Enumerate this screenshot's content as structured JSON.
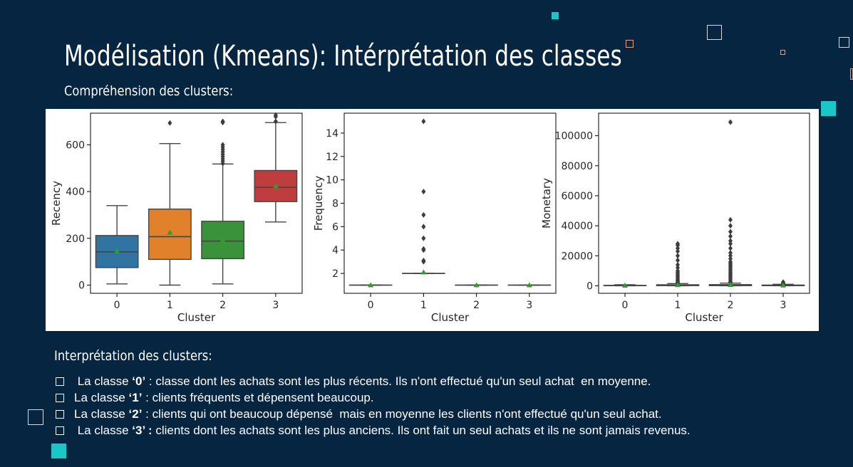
{
  "slide": {
    "title": "Modélisation (Kmeans):  Intérprétation des classes",
    "subtitle": "Compréhension des clusters:",
    "interpretation_heading": "Interprétation des clusters:",
    "bullets": [
      {
        "prefix": " La classe ",
        "cls": "‘0’",
        "text": " : classe dont les achats sont les plus récents. Ils n'ont effectué qu'un seul achat  en moyenne."
      },
      {
        "prefix": "La classe ",
        "cls": "‘1’",
        "text": " : clients fréquents et dépensent beaucoup."
      },
      {
        "prefix": "La classe ",
        "cls": "‘2’",
        "text": " : clients qui ont beaucoup dépensé  mais en moyenne les clients n'ont effectué qu'un seul achat."
      },
      {
        "prefix": " La classe ",
        "cls": "‘3’ :",
        "text": " clients dont les achats sont les plus anciens. Ils ont fait un seul achats et ils ne sont jamais revenus."
      }
    ]
  },
  "colors": {
    "background": "#062541",
    "accent": "#19c7c9",
    "cluster": [
      "#3274a1",
      "#e1812c",
      "#3a923a",
      "#c03d3e"
    ],
    "mean_marker": "#2ca02c"
  },
  "chart_data": [
    {
      "type": "box",
      "xlabel": "Cluster",
      "ylabel": "Recency",
      "categories": [
        "0",
        "1",
        "2",
        "3"
      ],
      "yticks": [
        0,
        200,
        400,
        600
      ],
      "ylim": [
        -35,
        735
      ],
      "boxes": [
        {
          "min": 5,
          "q1": 75,
          "median": 142,
          "q3": 212,
          "max": 340,
          "mean": 145,
          "outliers": []
        },
        {
          "min": 0,
          "q1": 110,
          "median": 207,
          "q3": 325,
          "max": 605,
          "mean": 225,
          "outliers": [
            693
          ]
        },
        {
          "min": 5,
          "q1": 113,
          "median": 188,
          "q3": 273,
          "max": 518,
          "mean": 192,
          "outliers": [
            520,
            530,
            540,
            550,
            560,
            570,
            580,
            590,
            600,
            695,
            700
          ]
        },
        {
          "min": 270,
          "q1": 357,
          "median": 418,
          "q3": 490,
          "max": 695,
          "mean": 423,
          "outliers": [
            700,
            720,
            727
          ]
        }
      ]
    },
    {
      "type": "box",
      "xlabel": "Cluster",
      "ylabel": "Frequency",
      "categories": [
        "0",
        "1",
        "2",
        "3"
      ],
      "yticks": [
        2,
        4,
        6,
        8,
        10,
        12,
        14
      ],
      "ylim": [
        0.3,
        15.7
      ],
      "boxes": [
        {
          "min": 1,
          "q1": 1,
          "median": 1,
          "q3": 1,
          "max": 1,
          "mean": 1,
          "outliers": []
        },
        {
          "min": 2,
          "q1": 2,
          "median": 2,
          "q3": 2,
          "max": 2,
          "mean": 2.1,
          "outliers": [
            3,
            3.1,
            4,
            4.1,
            5,
            6,
            7,
            9,
            15
          ]
        },
        {
          "min": 1,
          "q1": 1,
          "median": 1,
          "q3": 1,
          "max": 1,
          "mean": 1,
          "outliers": []
        },
        {
          "min": 1,
          "q1": 1,
          "median": 1,
          "q3": 1,
          "max": 1,
          "mean": 1,
          "outliers": []
        }
      ]
    },
    {
      "type": "box",
      "xlabel": "Cluster",
      "ylabel": "Monetary",
      "categories": [
        "0",
        "1",
        "2",
        "3"
      ],
      "yticks": [
        0,
        20000,
        40000,
        60000,
        80000,
        100000
      ],
      "ylim": [
        -5000,
        115000
      ],
      "boxes": [
        {
          "min": 0,
          "q1": 50,
          "median": 150,
          "q3": 300,
          "max": 700,
          "mean": 200,
          "outliers": []
        },
        {
          "min": 0,
          "q1": 100,
          "median": 300,
          "q3": 700,
          "max": 1500,
          "mean": 600,
          "outliers": [
            1600,
            2000,
            2500,
            3000,
            3500,
            4000,
            5000,
            6000,
            7000,
            8000,
            9000,
            10000,
            12000,
            14000,
            17000,
            20000,
            23000,
            25000,
            27000,
            28000
          ]
        },
        {
          "min": 0,
          "q1": 100,
          "median": 300,
          "q3": 800,
          "max": 1800,
          "mean": 700,
          "outliers": [
            2000,
            2500,
            3000,
            4000,
            5000,
            6000,
            7000,
            8000,
            9000,
            10000,
            11000,
            12000,
            13000,
            14000,
            15000,
            16000,
            18000,
            20000,
            22000,
            25000,
            28000,
            30000,
            33000,
            36000,
            40000,
            44000,
            109000
          ]
        },
        {
          "min": 0,
          "q1": 100,
          "median": 250,
          "q3": 500,
          "max": 1000,
          "mean": 350,
          "outliers": [
            1200,
            1600,
            2000,
            2500
          ]
        }
      ]
    }
  ]
}
